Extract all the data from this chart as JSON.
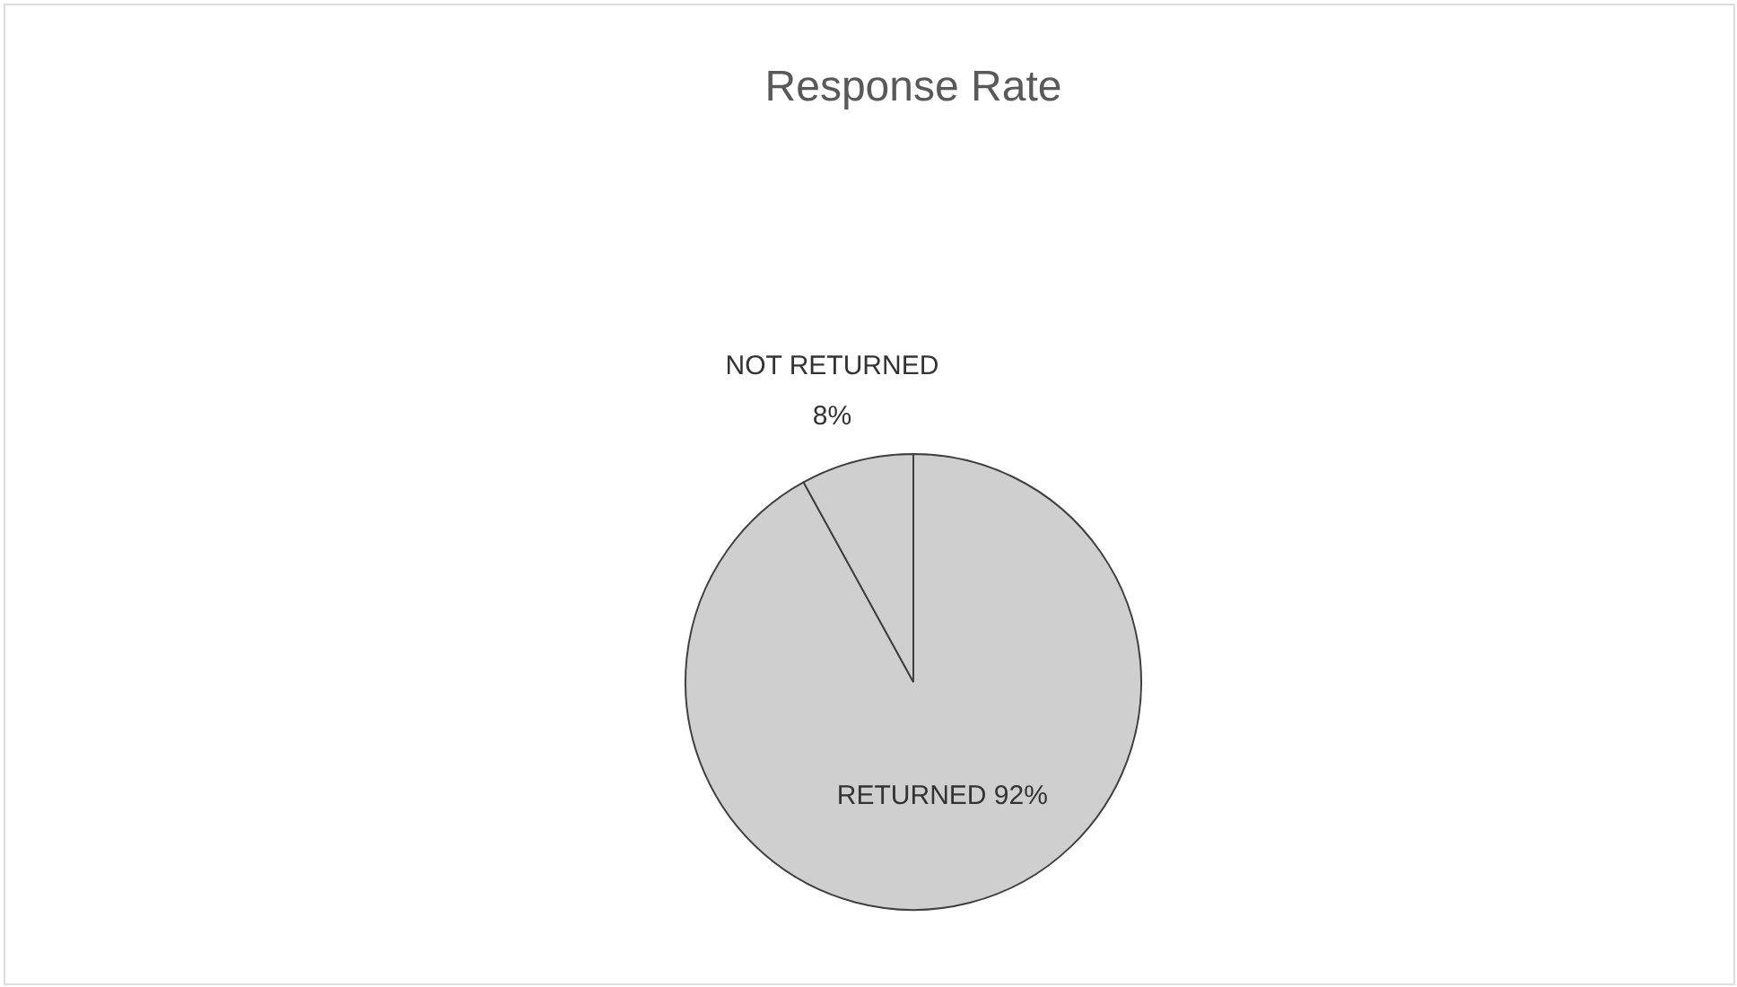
{
  "chart_data": {
    "type": "pie",
    "title": "Response Rate",
    "categories": [
      "RETURNED",
      "NOT RETURNED"
    ],
    "values": [
      92,
      8
    ],
    "value_labels": [
      "92%",
      "8%"
    ],
    "colors": [
      "#d0cfd0",
      "#d0cfd0"
    ]
  }
}
